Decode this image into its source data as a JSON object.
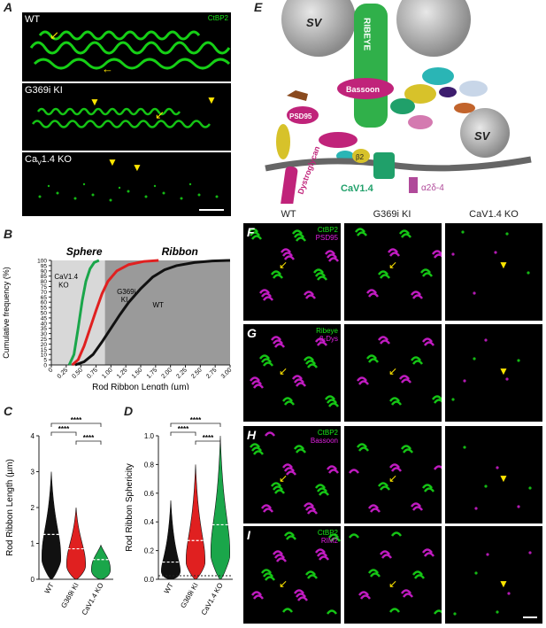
{
  "panels": {
    "A": {
      "letter": "A",
      "label_top": "WT",
      "label_mid": "G369i KI",
      "label_bot_pre": "Ca",
      "label_bot_sub": "V",
      "label_bot_post": "1.4 KO",
      "stain": "CtBP2"
    },
    "B": {
      "letter": "B"
    },
    "C": {
      "letter": "C"
    },
    "D": {
      "letter": "D"
    },
    "E": {
      "letter": "E",
      "labels": {
        "sv": "SV",
        "ribeye": "RIBEYE",
        "bassoon": "Bassoon",
        "psd95": "PSD95",
        "dystroglycan": "Dystroglycan",
        "beta2": "β2",
        "cav14": "CaV1.4",
        "a2d4": "α2δ-4",
        "sv2": "SV"
      }
    },
    "F": {
      "letter": "F",
      "stain1": "CtBP2",
      "stain2": "PSD95"
    },
    "G": {
      "letter": "G",
      "stain1": "Ribeye",
      "stain2": "β-Dys"
    },
    "H": {
      "letter": "H",
      "stain1": "CtBP2",
      "stain2": "Bassoon"
    },
    "I": {
      "letter": "I",
      "stain1": "CtBP2",
      "stain2": "RIM2"
    }
  },
  "column_headers": {
    "wt": "WT",
    "ki": "G369i KI",
    "ko": "CaV1.4 KO"
  },
  "colors": {
    "green": "#19e619",
    "magenta": "#e020e0",
    "yellow": "#ffe600",
    "wt_line": "#111111",
    "ki_line": "#e02020",
    "ko_line": "#1aa64a"
  },
  "chart_data": [
    {
      "type": "line",
      "panel": "B",
      "xlabel": "Rod Ribbon Length (µm)",
      "ylabel": "Cumulative frequency (%)",
      "xlim": [
        0,
        3.0
      ],
      "ylim": [
        0,
        100
      ],
      "x_ticks": [
        "0",
        "0.25",
        "0.50",
        "0.75",
        "1.00",
        "1.25",
        "1.50",
        "1.75",
        "2.00",
        "2.25",
        "2.50",
        "2.75",
        "3.00"
      ],
      "y_ticks": [
        "0",
        "5",
        "10",
        "15",
        "20",
        "25",
        "30",
        "35",
        "40",
        "45",
        "50",
        "55",
        "60",
        "65",
        "70",
        "75",
        "80",
        "85",
        "90",
        "95",
        "100"
      ],
      "region_labels": {
        "sphere": "Sphere",
        "ribbon": "Ribbon"
      },
      "series": [
        {
          "name": "WT",
          "x": [
            0.4,
            0.55,
            0.7,
            0.85,
            1.0,
            1.15,
            1.3,
            1.5,
            1.7,
            1.9,
            2.1,
            2.4,
            2.7,
            3.0
          ],
          "y": [
            0,
            3,
            10,
            22,
            35,
            48,
            60,
            73,
            84,
            91,
            95,
            98,
            99.5,
            100
          ]
        },
        {
          "name": "G369i KI",
          "x": [
            0.35,
            0.45,
            0.55,
            0.65,
            0.75,
            0.85,
            0.95,
            1.1,
            1.3,
            1.55,
            1.8
          ],
          "y": [
            0,
            5,
            18,
            35,
            52,
            68,
            80,
            90,
            96,
            99,
            100
          ]
        },
        {
          "name": "CaV1.4 KO",
          "x": [
            0.3,
            0.38,
            0.45,
            0.52,
            0.58,
            0.65,
            0.72,
            0.8
          ],
          "y": [
            0,
            10,
            35,
            62,
            80,
            92,
            98,
            100
          ]
        }
      ],
      "annotations": {
        "wt": "WT",
        "ki_1": "G369i",
        "ki_2": "KI",
        "ko_1": "CaV1.4",
        "ko_2": "KO"
      }
    },
    {
      "type": "violin",
      "panel": "C",
      "ylabel": "Rod Ribbon Length (µm)",
      "ylim": [
        0,
        4
      ],
      "y_ticks": [
        "0",
        "1",
        "2",
        "3",
        "4"
      ],
      "categories": [
        "WT",
        "G369i KI",
        "CaV1.4 KO"
      ],
      "medians": [
        1.25,
        0.85,
        0.55
      ],
      "maxima": [
        3.0,
        2.0,
        0.95
      ],
      "significance": [
        "****",
        "****",
        "****"
      ]
    },
    {
      "type": "violin",
      "panel": "D",
      "ylabel": "Rod Ribbon Sphericity",
      "ylim": [
        0,
        1.0
      ],
      "y_ticks": [
        "0.0",
        "0.2",
        "0.4",
        "0.6",
        "0.8",
        "1.0"
      ],
      "categories": [
        "WT",
        "G369i KI",
        "CaV1.4 KO"
      ],
      "medians": [
        0.12,
        0.27,
        0.38
      ],
      "maxima": [
        0.55,
        0.8,
        1.0
      ],
      "significance": [
        "****",
        "****",
        "****"
      ]
    }
  ]
}
